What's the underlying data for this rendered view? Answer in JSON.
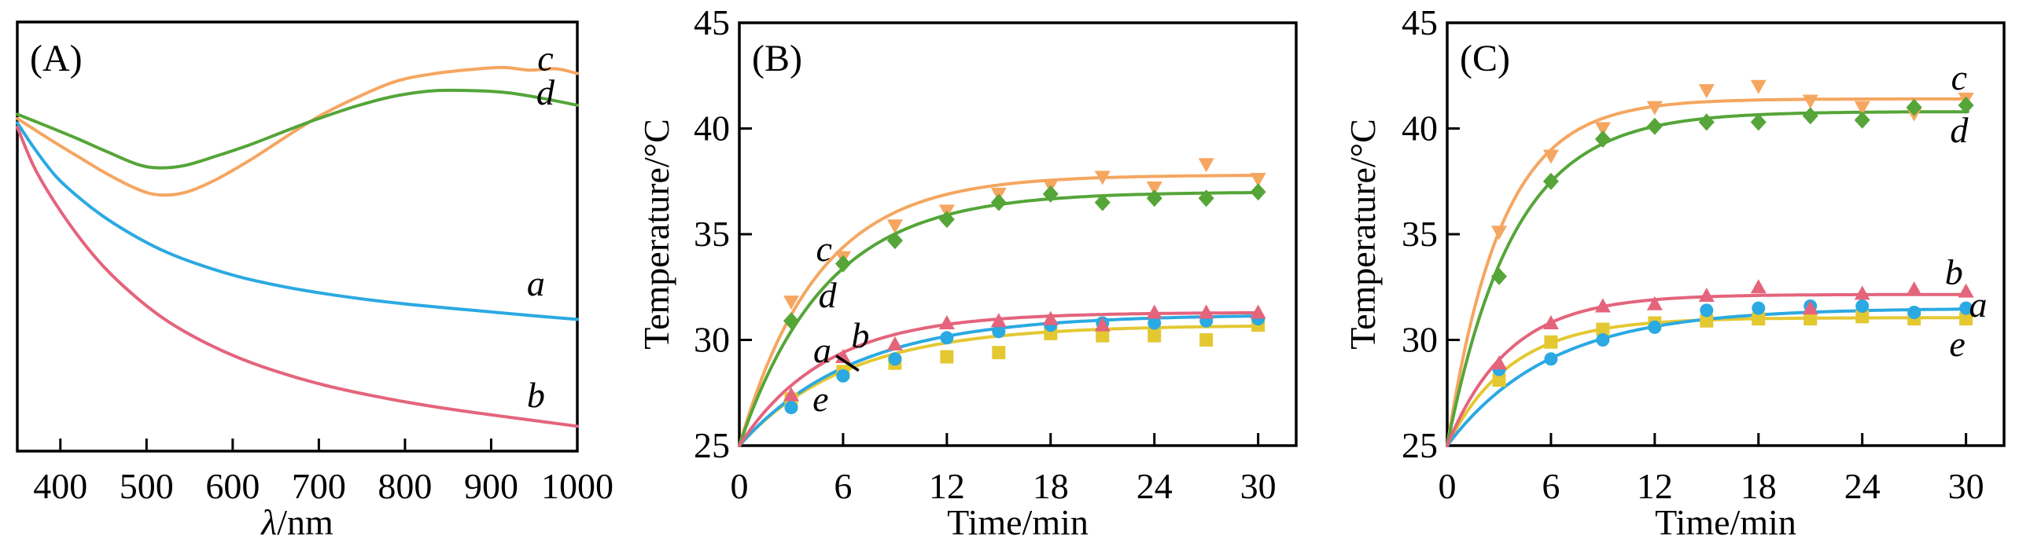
{
  "figure": {
    "background": "#ffffff",
    "axis_color": "#000000",
    "series_colors": {
      "a": "#2BA9E2",
      "b": "#E4647C",
      "c": "#F5A660",
      "d": "#55A538",
      "e": "#E4C832"
    },
    "series_markers": {
      "a": "circle",
      "b": "triangle-up",
      "c": "triangle-down",
      "d": "diamond",
      "e": "square"
    }
  },
  "chart_data": [
    {
      "id": "A",
      "type": "line",
      "panel_label": "(A)",
      "xlabel": "λ/nm",
      "ylabel": "",
      "xlim": [
        350,
        1000
      ],
      "xticks": [
        400,
        500,
        600,
        700,
        800,
        900,
        1000
      ],
      "ylim": [
        0,
        1
      ],
      "yticks": [],
      "grid": false,
      "legend": "inline curve labels",
      "series": [
        {
          "name": "a",
          "x": [
            350,
            370,
            395,
            425,
            455,
            490,
            525,
            565,
            610,
            660,
            710,
            765,
            820,
            880,
            940,
            1000
          ],
          "y": [
            0.765,
            0.705,
            0.64,
            0.585,
            0.54,
            0.497,
            0.462,
            0.432,
            0.405,
            0.383,
            0.366,
            0.351,
            0.339,
            0.328,
            0.317,
            0.307
          ],
          "label": {
            "text": "a",
            "x": 952,
            "y": 0.39
          }
        },
        {
          "name": "b",
          "x": [
            350,
            370,
            395,
            425,
            455,
            490,
            525,
            565,
            610,
            660,
            710,
            765,
            820,
            880,
            940,
            1000
          ],
          "y": [
            0.755,
            0.66,
            0.575,
            0.49,
            0.42,
            0.355,
            0.302,
            0.256,
            0.215,
            0.18,
            0.152,
            0.128,
            0.108,
            0.09,
            0.074,
            0.058
          ],
          "label": {
            "text": "b",
            "x": 952,
            "y": 0.13
          }
        },
        {
          "name": "c",
          "x": [
            350,
            385,
            420,
            455,
            490,
            515,
            545,
            580,
            620,
            660,
            700,
            745,
            790,
            835,
            880,
            915,
            945,
            975,
            1000
          ],
          "y": [
            0.775,
            0.73,
            0.687,
            0.645,
            0.61,
            0.597,
            0.603,
            0.632,
            0.678,
            0.73,
            0.78,
            0.825,
            0.862,
            0.88,
            0.89,
            0.894,
            0.888,
            0.891,
            0.88
          ],
          "label": {
            "text": "c",
            "x": 963,
            "y": 0.915
          }
        },
        {
          "name": "d",
          "x": [
            350,
            385,
            420,
            455,
            490,
            515,
            545,
            580,
            620,
            660,
            700,
            745,
            790,
            835,
            880,
            920,
            960,
            1000
          ],
          "y": [
            0.785,
            0.757,
            0.728,
            0.697,
            0.668,
            0.66,
            0.666,
            0.687,
            0.714,
            0.745,
            0.775,
            0.805,
            0.828,
            0.84,
            0.84,
            0.835,
            0.822,
            0.806
          ],
          "label": {
            "text": "d",
            "x": 963,
            "y": 0.835
          }
        }
      ]
    },
    {
      "id": "B",
      "type": "scatter-line",
      "panel_label": "(B)",
      "xlabel": "Time/min",
      "ylabel": "Temperature/°C",
      "xlim": [
        0,
        32.2
      ],
      "xticks": [
        0,
        6,
        12,
        18,
        24,
        30
      ],
      "ylim": [
        25,
        45
      ],
      "yticks": [
        25,
        30,
        35,
        40,
        45
      ],
      "grid": false,
      "x_points": [
        3,
        6,
        9,
        12,
        15,
        18,
        21,
        24,
        27,
        30
      ],
      "series": [
        {
          "name": "c",
          "fit": {
            "start": 25,
            "plateau": 37.8,
            "k": 0.22
          },
          "values": [
            31.8,
            33.9,
            35.4,
            36.1,
            36.9,
            37.3,
            37.7,
            37.2,
            38.3,
            37.6
          ],
          "label": {
            "text": "c",
            "x": 4.9,
            "y": 34.3
          }
        },
        {
          "name": "d",
          "fit": {
            "start": 25,
            "plateau": 37.0,
            "k": 0.2
          },
          "values": [
            30.9,
            33.6,
            34.7,
            35.7,
            36.5,
            36.9,
            36.5,
            36.7,
            36.7,
            37.0
          ],
          "label": {
            "text": "d",
            "x": 5.1,
            "y": 32.1
          }
        },
        {
          "name": "b",
          "fit": {
            "start": 25,
            "plateau": 31.3,
            "k": 0.2
          },
          "values": [
            27.4,
            29.2,
            29.8,
            30.8,
            30.9,
            31.0,
            30.7,
            31.3,
            31.3,
            31.3
          ],
          "label": {
            "text": "b",
            "x": 7.0,
            "y": 30.2
          }
        },
        {
          "name": "a",
          "fit": {
            "start": 25,
            "plateau": 31.2,
            "k": 0.15
          },
          "values": [
            26.8,
            28.3,
            29.1,
            30.1,
            30.4,
            30.7,
            30.8,
            30.8,
            30.9,
            31.0
          ],
          "label": {
            "text": "a",
            "x": 4.8,
            "y": 29.5
          },
          "pointer": {
            "x1": 5.6,
            "y1": 29.25,
            "x2": 6.9,
            "y2": 28.55
          }
        },
        {
          "name": "e",
          "fit": {
            "start": 25,
            "plateau": 30.7,
            "k": 0.16
          },
          "values": [
            27.2,
            28.5,
            28.9,
            29.2,
            29.4,
            30.3,
            30.2,
            30.2,
            30.0,
            30.7
          ],
          "label": {
            "text": "e",
            "x": 4.7,
            "y": 27.2
          }
        }
      ]
    },
    {
      "id": "C",
      "type": "scatter-line",
      "panel_label": "(C)",
      "xlabel": "Time/min",
      "ylabel": "Temperature/°C",
      "xlim": [
        0,
        32.2
      ],
      "xticks": [
        0,
        6,
        12,
        18,
        24,
        30
      ],
      "ylim": [
        25,
        45
      ],
      "yticks": [
        25,
        30,
        35,
        40,
        45
      ],
      "grid": false,
      "x_points": [
        3,
        6,
        9,
        12,
        15,
        18,
        21,
        24,
        27,
        30
      ],
      "series": [
        {
          "name": "c",
          "fit": {
            "start": 25,
            "plateau": 41.4,
            "k": 0.32
          },
          "values": [
            35.1,
            38.7,
            40.0,
            41.0,
            41.8,
            42.0,
            41.3,
            41.0,
            40.7,
            41.4
          ],
          "label": {
            "text": "c",
            "x": 29.6,
            "y": 42.4
          }
        },
        {
          "name": "d",
          "fit": {
            "start": 25,
            "plateau": 40.8,
            "k": 0.26
          },
          "values": [
            33.0,
            37.5,
            39.5,
            40.1,
            40.3,
            40.3,
            40.6,
            40.4,
            41.0,
            41.1
          ],
          "label": {
            "text": "d",
            "x": 29.6,
            "y": 39.9
          }
        },
        {
          "name": "b",
          "fit": {
            "start": 25,
            "plateau": 32.15,
            "k": 0.28
          },
          "values": [
            28.9,
            30.8,
            31.6,
            31.7,
            32.1,
            32.5,
            31.5,
            32.2,
            32.4,
            32.3
          ],
          "label": {
            "text": "b",
            "x": 29.3,
            "y": 33.2
          }
        },
        {
          "name": "a",
          "fit": {
            "start": 25,
            "plateau": 31.5,
            "k": 0.168
          },
          "values": [
            28.6,
            29.1,
            30.0,
            30.6,
            31.4,
            31.5,
            31.6,
            31.6,
            31.3,
            31.5
          ],
          "label": {
            "text": "a",
            "x": 30.7,
            "y": 31.65
          }
        },
        {
          "name": "e",
          "fit": {
            "start": 25,
            "plateau": 31.05,
            "k": 0.27
          },
          "values": [
            28.1,
            29.9,
            30.5,
            30.8,
            30.9,
            31.0,
            31.0,
            31.1,
            31.0,
            31.0
          ],
          "label": {
            "text": "e",
            "x": 29.5,
            "y": 29.8
          }
        }
      ]
    }
  ]
}
